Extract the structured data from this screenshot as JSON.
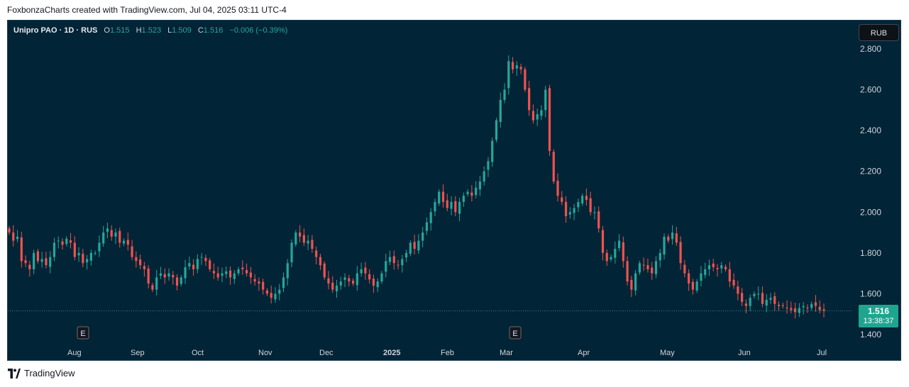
{
  "caption": "FoxbonzaCharts created with TradingView.com, Jul 04, 2025 03:11 UTC-4",
  "footer_brand": "TradingView",
  "legend": {
    "symbol": "Unipro PAO · 1D · RUS",
    "o_label": "O",
    "o_value": "1.515",
    "h_label": "H",
    "h_value": "1.523",
    "l_label": "L",
    "l_value": "1.509",
    "c_label": "C",
    "c_value": "1.516",
    "change": "−0.006 (−0.39%)"
  },
  "currency": "RUB",
  "last_price": "1.516",
  "countdown": "13:38:37",
  "colors": {
    "up": "#26a69a",
    "down": "#ef5350",
    "bg": "#012436",
    "axis_text": "#d1d4dc"
  },
  "chart_data": {
    "type": "candlestick",
    "title": "Unipro PAO · 1D · RUS",
    "y_ticks": [
      "2.800",
      "2.600",
      "2.400",
      "2.200",
      "2.000",
      "1.800",
      "1.600",
      "1.400"
    ],
    "x_ticks": [
      "Aug",
      "Sep",
      "Oct",
      "Nov",
      "Dec",
      "2025",
      "Feb",
      "Mar",
      "Apr",
      "May",
      "Jun",
      "Jul"
    ],
    "ylim": [
      1.4,
      2.8
    ],
    "earnings_markers": [
      {
        "label": "E",
        "near": "Aug"
      },
      {
        "label": "E",
        "near": "Mar"
      }
    ],
    "close_series": [
      1.9,
      1.86,
      1.88,
      1.76,
      1.75,
      1.72,
      1.8,
      1.76,
      1.77,
      1.74,
      1.78,
      1.85,
      1.86,
      1.84,
      1.87,
      1.85,
      1.78,
      1.8,
      1.75,
      1.77,
      1.8,
      1.8,
      1.85,
      1.9,
      1.92,
      1.88,
      1.9,
      1.85,
      1.86,
      1.84,
      1.78,
      1.76,
      1.74,
      1.72,
      1.65,
      1.62,
      1.68,
      1.7,
      1.68,
      1.7,
      1.68,
      1.64,
      1.68,
      1.73,
      1.75,
      1.72,
      1.77,
      1.78,
      1.76,
      1.72,
      1.7,
      1.68,
      1.7,
      1.71,
      1.68,
      1.7,
      1.72,
      1.72,
      1.7,
      1.68,
      1.66,
      1.65,
      1.62,
      1.6,
      1.58,
      1.6,
      1.62,
      1.68,
      1.75,
      1.85,
      1.9,
      1.88,
      1.85,
      1.86,
      1.82,
      1.78,
      1.74,
      1.68,
      1.65,
      1.62,
      1.64,
      1.66,
      1.68,
      1.66,
      1.65,
      1.7,
      1.72,
      1.7,
      1.67,
      1.64,
      1.66,
      1.7,
      1.76,
      1.78,
      1.75,
      1.74,
      1.77,
      1.8,
      1.85,
      1.82,
      1.86,
      1.9,
      1.95,
      2.0,
      2.05,
      2.1,
      2.05,
      2.02,
      2.05,
      2.0,
      2.05,
      2.08,
      2.1,
      2.08,
      2.12,
      2.15,
      2.2,
      2.25,
      2.35,
      2.45,
      2.55,
      2.6,
      2.74,
      2.7,
      2.72,
      2.7,
      2.6,
      2.5,
      2.45,
      2.48,
      2.5,
      2.6,
      2.3,
      2.15,
      2.08,
      2.05,
      1.98,
      2.0,
      2.02,
      2.05,
      2.08,
      2.06,
      2.0,
      2.0,
      1.92,
      1.8,
      1.76,
      1.78,
      1.82,
      1.86,
      1.76,
      1.66,
      1.62,
      1.7,
      1.75,
      1.74,
      1.72,
      1.7,
      1.76,
      1.8,
      1.88,
      1.86,
      1.9,
      1.85,
      1.75,
      1.7,
      1.65,
      1.62,
      1.66,
      1.7,
      1.72,
      1.74,
      1.73,
      1.72,
      1.74,
      1.72,
      1.66,
      1.64,
      1.6,
      1.56,
      1.54,
      1.58,
      1.6,
      1.6,
      1.55,
      1.57,
      1.58,
      1.55,
      1.54,
      1.54,
      1.53,
      1.52,
      1.51,
      1.53,
      1.54,
      1.53,
      1.55,
      1.54,
      1.52,
      1.516
    ]
  }
}
